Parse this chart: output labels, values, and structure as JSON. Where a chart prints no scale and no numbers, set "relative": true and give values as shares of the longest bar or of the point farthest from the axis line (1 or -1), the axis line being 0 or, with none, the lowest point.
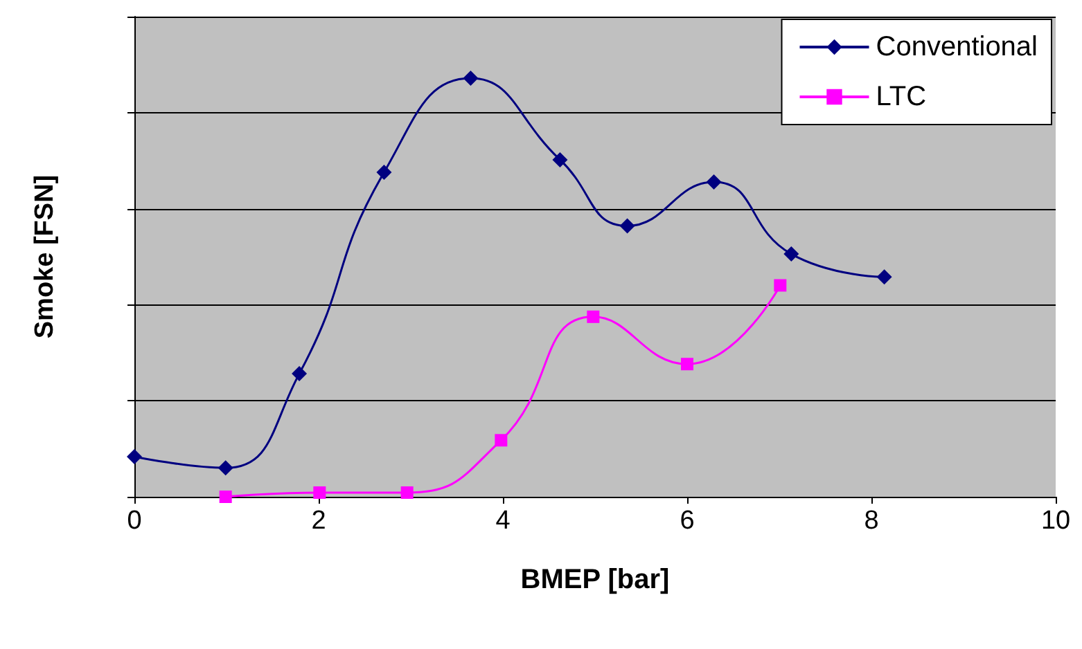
{
  "chart_data": {
    "type": "line",
    "relative": true,
    "xlabel": "BMEP [bar]",
    "ylabel": "Smoke [FSN]",
    "xlim": [
      0,
      10
    ],
    "xticks": [
      0,
      2,
      4,
      6,
      8,
      10
    ],
    "grid": "y",
    "legend": "top right",
    "series": [
      {
        "name": "Conventional",
        "color": "#000080",
        "marker": "diamond",
        "x": [
          0,
          0.99,
          1.79,
          2.71,
          3.65,
          4.62,
          5.35,
          6.29,
          7.13,
          8.14
        ],
        "values": [
          0.096,
          0.069,
          0.294,
          0.775,
          1,
          0.805,
          0.647,
          0.752,
          0.58,
          0.525
        ]
      },
      {
        "name": "LTC",
        "color": "#ff00ff",
        "marker": "square",
        "x": [
          0.99,
          2.01,
          2.96,
          3.98,
          4.98,
          6.0,
          7.01
        ],
        "values": [
          0,
          0.01,
          0.01,
          0.135,
          0.43,
          0.317,
          0.505
        ]
      }
    ]
  }
}
